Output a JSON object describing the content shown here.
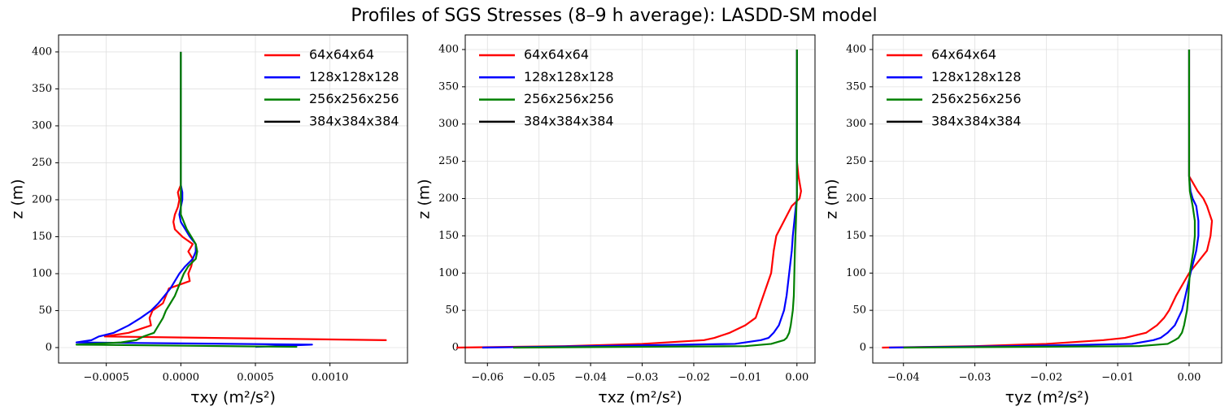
{
  "title": "Profiles of SGS Stresses (8–9 h average): LASDD-SM model",
  "chart_data": [
    {
      "type": "line",
      "orientation": "horizontal",
      "xlabel": "τxy (m²/s²)",
      "ylabel": "z (m)",
      "xlim": [
        -0.00082,
        0.00152
      ],
      "ylim": [
        -20.9,
        423
      ],
      "xticks": [
        {
          "value": -0.0005,
          "label": "−0.0005"
        },
        {
          "value": 0,
          "label": "0.0000"
        },
        {
          "value": 0.0005,
          "label": "0.0005"
        },
        {
          "value": 0.001,
          "label": "0.0010"
        }
      ],
      "yticks": [
        0,
        50,
        100,
        150,
        200,
        250,
        300,
        350,
        400
      ],
      "grid": true,
      "legend": "upper right",
      "y": [
        1,
        4,
        7,
        10,
        15,
        20,
        30,
        40,
        50,
        60,
        70,
        80,
        90,
        100,
        110,
        120,
        130,
        140,
        150,
        160,
        170,
        180,
        190,
        200,
        210,
        220,
        250,
        300,
        350,
        400
      ],
      "series": [
        {
          "name": "64x64x64",
          "color": "#ff0000",
          "values": [
            null,
            null,
            null,
            0.00138,
            -0.00051,
            -0.00035,
            -0.0002,
            -0.00021,
            -0.00019,
            -0.00012,
            -0.0001,
            -8e-05,
            6e-05,
            5e-05,
            7e-05,
            8e-05,
            5e-05,
            8e-05,
            1e-05,
            -4e-05,
            -5e-05,
            -4e-05,
            -2e-05,
            -1e-05,
            -2e-05,
            0,
            0,
            0,
            0,
            0
          ]
        },
        {
          "name": "128x128x128",
          "color": "#0000ff",
          "values": [
            0.0005,
            0.00088,
            -0.0007,
            -0.0006,
            -0.00055,
            -0.00045,
            -0.00035,
            -0.00027,
            -0.0002,
            -0.00015,
            -0.00011,
            -7e-05,
            -4e-05,
            -1e-05,
            3e-05,
            8e-05,
            0.0001,
            0.0001,
            6e-05,
            3e-05,
            0,
            -1e-05,
            0,
            1e-05,
            1e-05,
            0,
            0,
            0,
            0,
            0
          ]
        },
        {
          "name": "256x256x256",
          "color": "#008000",
          "values": [
            0.00078,
            -0.0007,
            -0.0004,
            -0.0003,
            -0.00025,
            -0.00018,
            -0.00015,
            -0.00012,
            -0.0001,
            -7e-05,
            -4e-05,
            -2e-05,
            0,
            2e-05,
            5e-05,
            0.0001,
            0.00011,
            0.0001,
            7e-05,
            4e-05,
            2e-05,
            0,
            0,
            0,
            0,
            0,
            0,
            0,
            0,
            0
          ]
        },
        {
          "name": "384x384x384",
          "color": "#000000",
          "values": [
            null,
            null,
            null,
            null,
            null,
            null,
            null,
            null,
            null,
            null,
            null,
            null,
            null,
            null,
            null,
            null,
            null,
            null,
            null,
            null,
            null,
            null,
            null,
            null,
            null,
            null,
            null,
            null,
            null,
            null
          ]
        }
      ]
    },
    {
      "type": "line",
      "orientation": "horizontal",
      "xlabel": "τxz (m²/s²)",
      "ylabel": "z (m)",
      "xlim": [
        -0.0643,
        0.0035
      ],
      "ylim": [
        -20.7,
        419.6
      ],
      "xticks": [
        {
          "value": -0.06,
          "label": "−0.06"
        },
        {
          "value": -0.05,
          "label": "−0.05"
        },
        {
          "value": -0.04,
          "label": "−0.04"
        },
        {
          "value": -0.03,
          "label": "−0.03"
        },
        {
          "value": -0.02,
          "label": "−0.02"
        },
        {
          "value": -0.01,
          "label": "−0.01"
        },
        {
          "value": 0,
          "label": "0.00"
        }
      ],
      "yticks": [
        0,
        50,
        100,
        150,
        200,
        250,
        300,
        350,
        400
      ],
      "grid": true,
      "legend": "upper left",
      "y": [
        0,
        2,
        5,
        10,
        13,
        20,
        30,
        40,
        50,
        70,
        100,
        130,
        150,
        170,
        190,
        200,
        210,
        230,
        250,
        300,
        350,
        400
      ],
      "series": [
        {
          "name": "64x64x64",
          "color": "#ff0000",
          "values": [
            -0.066,
            -0.045,
            -0.03,
            -0.018,
            -0.016,
            -0.013,
            -0.01,
            -0.008,
            -0.0075,
            -0.0065,
            -0.005,
            -0.0045,
            -0.004,
            -0.0025,
            -0.001,
            0.0005,
            0.0008,
            0.0003,
            0,
            0,
            0,
            0
          ]
        },
        {
          "name": "128x128x128",
          "color": "#0000ff",
          "values": [
            -0.061,
            -0.04,
            -0.012,
            -0.007,
            -0.0055,
            -0.0045,
            -0.0035,
            -0.003,
            -0.0025,
            -0.002,
            -0.0015,
            -0.001,
            -0.0008,
            -0.0005,
            -0.0002,
            0,
            0,
            0,
            0,
            0,
            0,
            0
          ]
        },
        {
          "name": "256x256x256",
          "color": "#008000",
          "values": [
            -0.055,
            -0.01,
            -0.005,
            -0.0025,
            -0.002,
            -0.0015,
            -0.0012,
            -0.001,
            -0.0008,
            -0.0006,
            -0.0005,
            -0.0004,
            -0.0003,
            -0.0002,
            -0.0001,
            0,
            0,
            0,
            0,
            0,
            0,
            0
          ]
        },
        {
          "name": "384x384x384",
          "color": "#000000",
          "values": [
            null,
            null,
            null,
            null,
            null,
            null,
            null,
            null,
            null,
            null,
            null,
            null,
            null,
            null,
            null,
            null,
            null,
            null,
            null,
            null,
            null,
            null
          ]
        }
      ]
    },
    {
      "type": "line",
      "orientation": "horizontal",
      "xlabel": "τyz (m²/s²)",
      "ylabel": "z (m)",
      "xlim": [
        -0.0443,
        0.00456
      ],
      "ylim": [
        -20.7,
        419.6
      ],
      "xticks": [
        {
          "value": -0.04,
          "label": "−0.04"
        },
        {
          "value": -0.03,
          "label": "−0.03"
        },
        {
          "value": -0.02,
          "label": "−0.02"
        },
        {
          "value": -0.01,
          "label": "−0.01"
        },
        {
          "value": 0,
          "label": "0.00"
        }
      ],
      "yticks": [
        0,
        50,
        100,
        150,
        200,
        250,
        300,
        350,
        400
      ],
      "grid": true,
      "legend": "upper left",
      "y": [
        0,
        2,
        5,
        10,
        13,
        20,
        30,
        40,
        50,
        70,
        100,
        130,
        150,
        170,
        190,
        200,
        210,
        230,
        250,
        300,
        350,
        400
      ],
      "series": [
        {
          "name": "64x64x64",
          "color": "#ff0000",
          "values": [
            -0.043,
            -0.03,
            -0.02,
            -0.012,
            -0.009,
            -0.006,
            -0.0045,
            -0.0035,
            -0.0028,
            -0.0018,
            0,
            0.0025,
            0.003,
            0.0032,
            0.0025,
            0.002,
            0.0012,
            0,
            0,
            0,
            0,
            0
          ]
        },
        {
          "name": "128x128x128",
          "color": "#0000ff",
          "values": [
            -0.042,
            -0.025,
            -0.008,
            -0.005,
            -0.004,
            -0.003,
            -0.002,
            -0.0015,
            -0.001,
            -0.0005,
            0.0002,
            0.001,
            0.0013,
            0.0013,
            0.001,
            0.0005,
            0.0002,
            0,
            0,
            0,
            0,
            0
          ]
        },
        {
          "name": "256x256x256",
          "color": "#008000",
          "values": [
            -0.04,
            -0.007,
            -0.003,
            -0.002,
            -0.0015,
            -0.001,
            -0.0007,
            -0.0005,
            -0.0003,
            -0.0001,
            0.0001,
            0.0006,
            0.0008,
            0.0008,
            0.0005,
            0.0003,
            0.0001,
            0,
            0,
            0,
            0,
            0
          ]
        },
        {
          "name": "384x384x384",
          "color": "#000000",
          "values": [
            null,
            null,
            null,
            null,
            null,
            null,
            null,
            null,
            null,
            null,
            null,
            null,
            null,
            null,
            null,
            null,
            null,
            null,
            null,
            null,
            null,
            null
          ]
        }
      ]
    }
  ]
}
